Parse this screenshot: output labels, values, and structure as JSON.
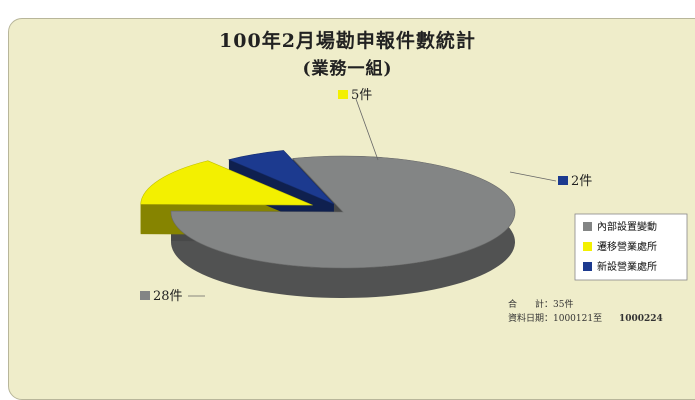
{
  "chart_data": {
    "type": "pie",
    "title": "100年2月場勘申報件數統計",
    "subtitle": "(業務一組)",
    "series": [
      {
        "name": "內部設置變動",
        "value": 28,
        "label": "28件",
        "color": "#838585"
      },
      {
        "name": "遷移營業處所",
        "value": 5,
        "label": "5件",
        "color": "#f3f000"
      },
      {
        "name": "新設營業處所",
        "value": 2,
        "label": "2件",
        "color": "#1c3a8f"
      }
    ],
    "legend_position": "right",
    "style": "3d-exploded"
  },
  "notes": {
    "total": "合　　計：35件",
    "date_range": "資料日期：1000121至",
    "date_end": "1000224"
  }
}
